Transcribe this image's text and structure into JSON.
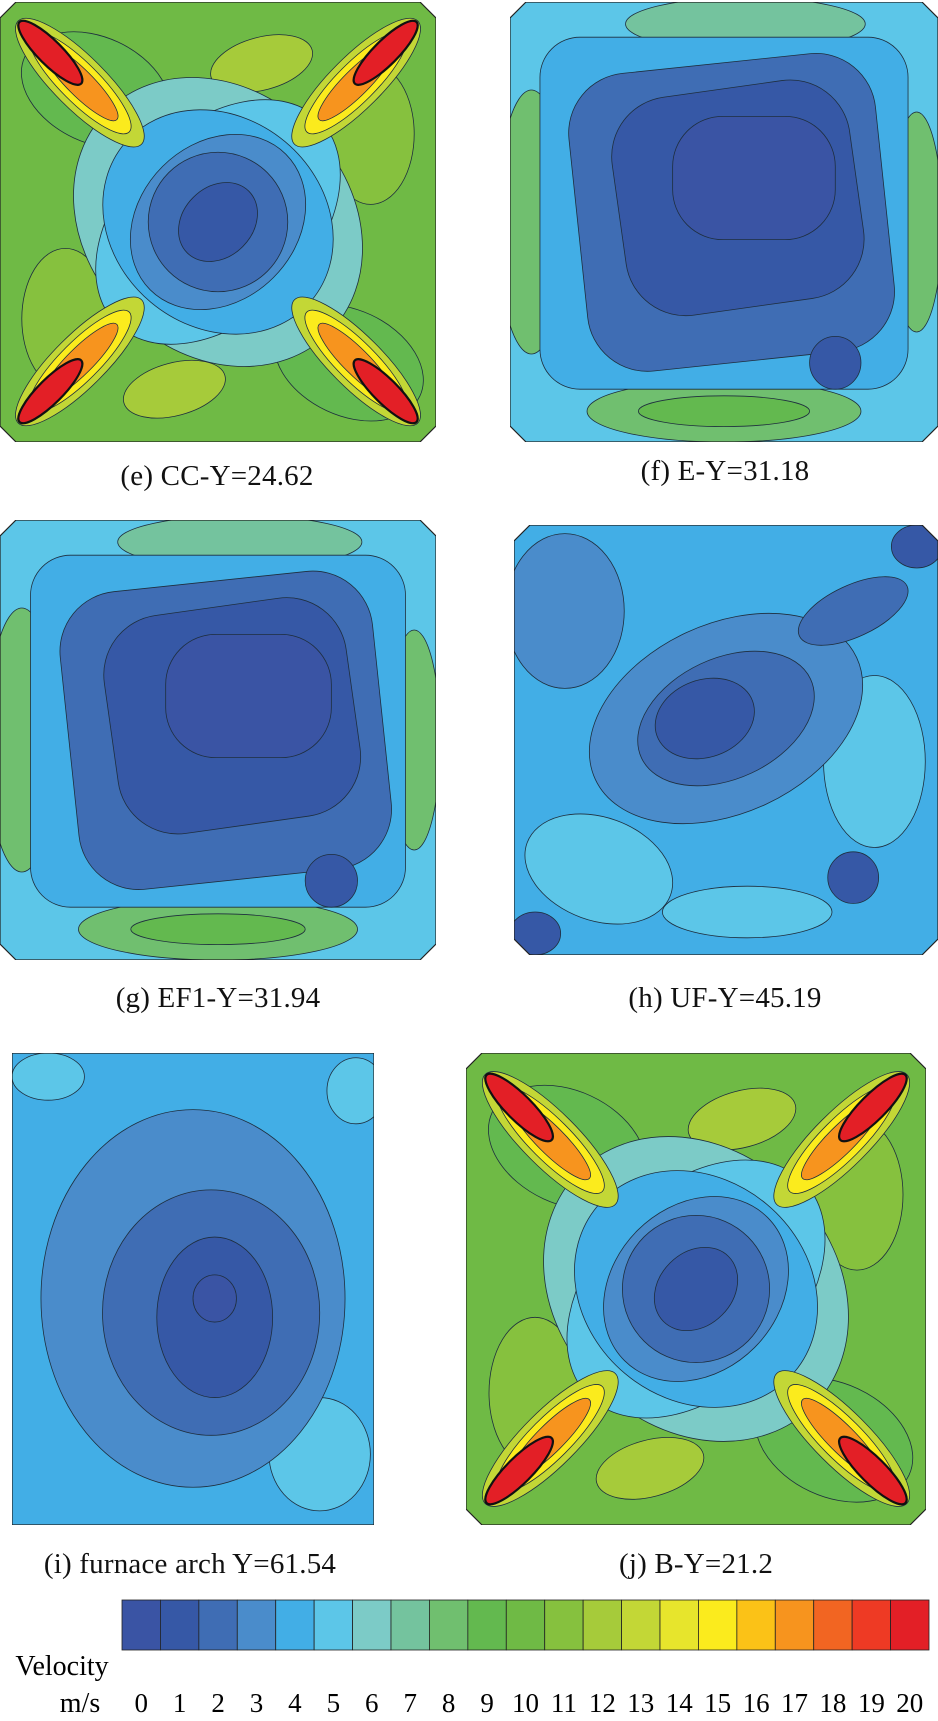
{
  "figure": {
    "panels": [
      {
        "id": "e",
        "caption": "(e) CC-Y=24.62",
        "style": "tangential-jets"
      },
      {
        "id": "f",
        "caption": "(f) E-Y=31.18",
        "style": "low-velocity-core"
      },
      {
        "id": "g",
        "caption": "(g) EF1-Y=31.94",
        "style": "low-velocity-core"
      },
      {
        "id": "h",
        "caption": "(h) UF-Y=45.19",
        "style": "irregular-low"
      },
      {
        "id": "i",
        "caption": "(i) furnace arch Y=61.54",
        "style": "arch-oval"
      },
      {
        "id": "j",
        "caption": "(j) B-Y=21.2",
        "style": "tangential-jets"
      }
    ]
  },
  "legend": {
    "label_line1": "Velocity",
    "label_line2": "m/s",
    "ticks": [
      "0",
      "1",
      "2",
      "3",
      "4",
      "5",
      "6",
      "7",
      "8",
      "9",
      "10",
      "11",
      "12",
      "13",
      "14",
      "15",
      "16",
      "17",
      "18",
      "19",
      "20"
    ],
    "colors": [
      "#3a54a4",
      "#3658a6",
      "#3f6db4",
      "#4a8ccb",
      "#42aee6",
      "#5cc6e8",
      "#7ccbc7",
      "#74c39e",
      "#70bf6f",
      "#63b94f",
      "#6fba45",
      "#86c13e",
      "#a6cb3a",
      "#c3d736",
      "#e7e52c",
      "#fbeb1d",
      "#fbc217",
      "#f7941e",
      "#f26522",
      "#ee3a24",
      "#e31f26"
    ]
  },
  "chart_data": {
    "type": "heatmap",
    "title": "",
    "colorbar": {
      "label": "Velocity m/s",
      "min": 0,
      "max": 20,
      "ticks": [
        0,
        1,
        2,
        3,
        4,
        5,
        6,
        7,
        8,
        9,
        10,
        11,
        12,
        13,
        14,
        15,
        16,
        17,
        18,
        19,
        20
      ]
    },
    "panels": [
      {
        "label": "(e) CC-Y=24.62",
        "approx_min_ms": 1,
        "approx_max_ms": 20,
        "high_regions": "four corner jets"
      },
      {
        "label": "(f) E-Y=31.18",
        "approx_min_ms": 1,
        "approx_max_ms": 9
      },
      {
        "label": "(g) EF1-Y=31.94",
        "approx_min_ms": 1,
        "approx_max_ms": 9
      },
      {
        "label": "(h) UF-Y=45.19",
        "approx_min_ms": 1,
        "approx_max_ms": 6
      },
      {
        "label": "(i) furnace arch Y=61.54",
        "approx_min_ms": 1,
        "approx_max_ms": 6
      },
      {
        "label": "(j) B-Y=21.2",
        "approx_min_ms": 1,
        "approx_max_ms": 20,
        "high_regions": "four corner jets"
      }
    ]
  }
}
